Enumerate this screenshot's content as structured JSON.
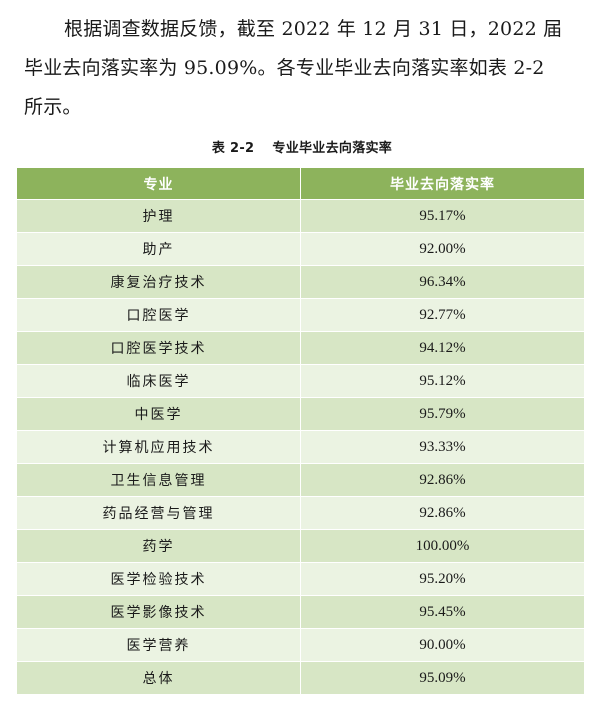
{
  "paragraph": {
    "line1": "根据调查数据反馈，截至 2022 年 12 月 31 日，2022 届",
    "line2": "毕业去向落实率为 95.09%。各专业毕业去向落实率如表 2-2",
    "line3": "所示。"
  },
  "caption": {
    "number": "表 2-2",
    "title": "专业毕业去向落实率"
  },
  "table": {
    "headers": [
      "专业",
      "毕业去向落实率"
    ],
    "rows": [
      {
        "major": "护理",
        "rate": "95.17%"
      },
      {
        "major": "助产",
        "rate": "92.00%"
      },
      {
        "major": "康复治疗技术",
        "rate": "96.34%"
      },
      {
        "major": "口腔医学",
        "rate": "92.77%"
      },
      {
        "major": "口腔医学技术",
        "rate": "94.12%"
      },
      {
        "major": "临床医学",
        "rate": "95.12%"
      },
      {
        "major": "中医学",
        "rate": "95.79%"
      },
      {
        "major": "计算机应用技术",
        "rate": "93.33%"
      },
      {
        "major": "卫生信息管理",
        "rate": "92.86%"
      },
      {
        "major": "药品经营与管理",
        "rate": "92.86%"
      },
      {
        "major": "药学",
        "rate": "100.00%"
      },
      {
        "major": "医学检验技术",
        "rate": "95.20%"
      },
      {
        "major": "医学影像技术",
        "rate": "95.45%"
      },
      {
        "major": "医学营养",
        "rate": "90.00%"
      },
      {
        "major": "总体",
        "rate": "95.09%"
      }
    ]
  },
  "colors": {
    "header_bg": "#8db35c",
    "row_dark": "#d7e6c5",
    "row_light": "#ebf3e2"
  }
}
